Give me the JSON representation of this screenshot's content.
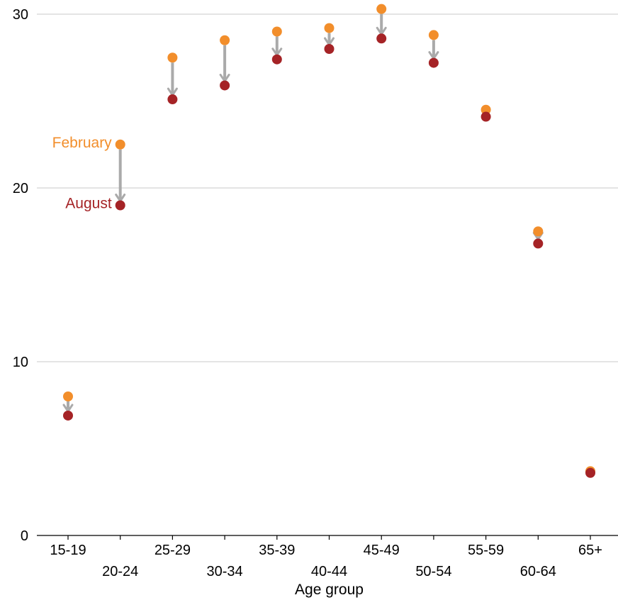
{
  "chart_data": {
    "type": "scatter",
    "xlabel": "Age group",
    "ylabel": "",
    "ylim": [
      0,
      30
    ],
    "yticks": [
      0,
      10,
      20,
      30
    ],
    "grid": true,
    "categories": [
      "15-19",
      "20-24",
      "25-29",
      "30-34",
      "35-39",
      "40-44",
      "45-49",
      "50-54",
      "55-59",
      "60-64",
      "65+"
    ],
    "series": [
      {
        "name": "February",
        "color": "#f28e2b",
        "values": [
          8.0,
          22.5,
          27.5,
          28.5,
          29.0,
          29.2,
          30.3,
          28.8,
          24.5,
          17.5,
          3.7
        ]
      },
      {
        "name": "August",
        "color": "#a52326",
        "values": [
          6.9,
          19.0,
          25.1,
          25.9,
          27.4,
          28.0,
          28.6,
          27.2,
          24.1,
          16.8,
          3.6
        ]
      }
    ],
    "arrow_color": "#aaaaaa"
  }
}
